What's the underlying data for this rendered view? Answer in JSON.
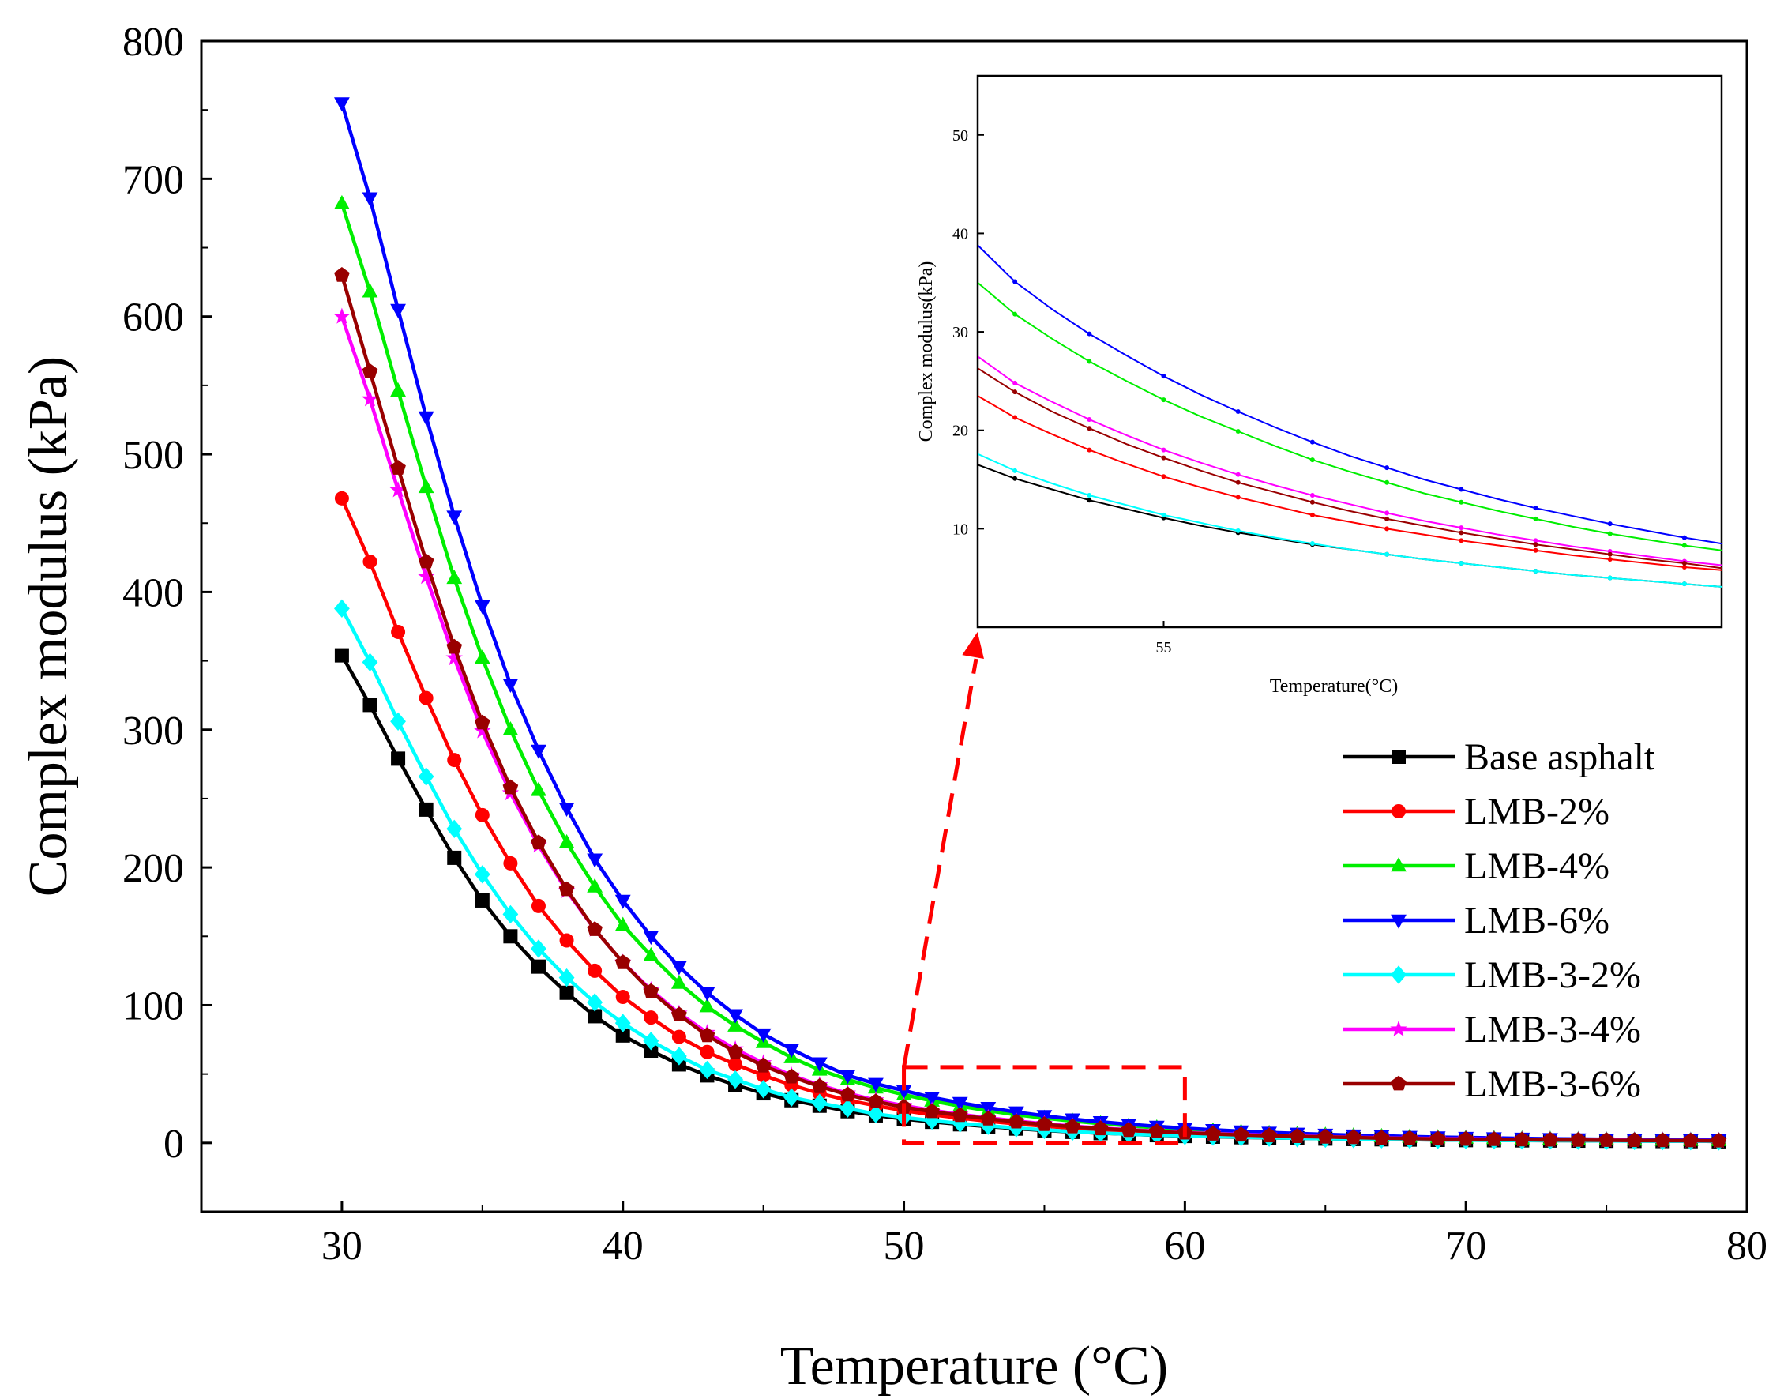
{
  "chart_data": [
    {
      "type": "line",
      "xlabel": "Temperature (°C)",
      "ylabel": "Complex modulus (kPa)",
      "xlim": [
        25,
        80
      ],
      "ylim": [
        -50,
        800
      ],
      "xticks": [
        30,
        40,
        50,
        60,
        70,
        80
      ],
      "yticks": [
        0,
        100,
        200,
        300,
        400,
        500,
        600,
        700,
        800
      ],
      "xtick_labels": [
        "30",
        "40",
        "50",
        "60",
        "70",
        "80"
      ],
      "ytick_labels": [
        "0",
        "100",
        "200",
        "300",
        "400",
        "500",
        "600",
        "700",
        "800"
      ],
      "grid": false,
      "legend_position": "right",
      "x": [
        30,
        31,
        32,
        33,
        34,
        35,
        36,
        37,
        38,
        39,
        40,
        41,
        42,
        43,
        44,
        45,
        46,
        47,
        48,
        49,
        50,
        51,
        52,
        53,
        54,
        55,
        56,
        57,
        58,
        59,
        60,
        61,
        62,
        63,
        64,
        65,
        66,
        67,
        68,
        69,
        70,
        71,
        72,
        73,
        74,
        75,
        76,
        77,
        78,
        79
      ],
      "series": [
        {
          "name": "Base asphalt",
          "color": "#000000",
          "marker": "square",
          "values": [
            354,
            318,
            279,
            242,
            207,
            176,
            150,
            128,
            109,
            92,
            78,
            67,
            57,
            49,
            42,
            36,
            31,
            27,
            23,
            20,
            17.4,
            15.3,
            13.5,
            11.9,
            10.4,
            9.1,
            8.0,
            7.1,
            6.3,
            5.6,
            5.0,
            4.5,
            4.1,
            3.7,
            3.4,
            3.1,
            2.8,
            2.6,
            2.4,
            2.2,
            2.0,
            1.9,
            1.8,
            1.7,
            1.6,
            1.5,
            1.4,
            1.3,
            1.2,
            1.1
          ]
        },
        {
          "name": "LMB-2%",
          "color": "#ff0000",
          "marker": "circle",
          "values": [
            468,
            422,
            371,
            323,
            278,
            238,
            203,
            172,
            147,
            125,
            106,
            91,
            77,
            66,
            57,
            49,
            42,
            36,
            31,
            27,
            23.5,
            20.5,
            18.0,
            15.8,
            13.8,
            12.2,
            10.7,
            9.5,
            8.5,
            7.6,
            6.8,
            6.1,
            5.5,
            5.0,
            4.5,
            4.1,
            3.7,
            3.4,
            3.1,
            2.9,
            2.7,
            2.5,
            2.3,
            2.1,
            2.0,
            1.9,
            1.8,
            1.7,
            1.6,
            1.5
          ]
        },
        {
          "name": "LMB-4%",
          "color": "#00ee00",
          "marker": "triangle-up",
          "values": [
            682,
            618,
            546,
            476,
            410,
            352,
            300,
            256,
            218,
            186,
            158,
            136,
            116,
            99,
            85,
            73,
            62,
            53,
            46,
            40,
            35,
            30.5,
            26.7,
            23.4,
            20.5,
            18.0,
            15.9,
            14.0,
            12.4,
            11.0,
            9.8,
            8.7,
            7.8,
            7.0,
            6.3,
            5.7,
            5.2,
            4.7,
            4.3,
            3.9,
            3.6,
            3.3,
            3.0,
            2.8,
            2.6,
            2.4,
            2.2,
            2.1,
            2.0,
            1.9
          ]
        },
        {
          "name": "LMB-6%",
          "color": "#0000ff",
          "marker": "triangle-down",
          "values": [
            755,
            686,
            605,
            527,
            455,
            390,
            333,
            285,
            243,
            206,
            176,
            150,
            128,
            109,
            93,
            79,
            68,
            58,
            49,
            43,
            38,
            33,
            29.2,
            25.6,
            22.4,
            19.7,
            17.3,
            15.3,
            13.5,
            12.0,
            10.7,
            9.5,
            8.5,
            7.6,
            6.9,
            6.2,
            5.6,
            5.1,
            4.6,
            4.2,
            3.9,
            3.6,
            3.3,
            3.0,
            2.8,
            2.6,
            2.4,
            2.3,
            2.2,
            2.1
          ]
        },
        {
          "name": "LMB-3-2%",
          "color": "#00ffff",
          "marker": "diamond",
          "values": [
            388,
            349,
            306,
            266,
            228,
            195,
            166,
            141,
            120,
            102,
            87,
            74,
            63,
            53,
            46,
            39,
            33,
            29,
            25,
            21,
            18.5,
            16.2,
            14.2,
            12.4,
            10.8,
            9.4,
            8.2,
            7.2,
            6.4,
            5.7,
            5.1,
            4.6,
            4.2,
            3.8,
            3.4,
            3.1,
            2.8,
            2.6,
            2.4,
            2.2,
            2.0,
            1.9,
            1.8,
            1.7,
            1.6,
            1.5,
            1.4,
            1.3,
            1.2,
            1.1
          ]
        },
        {
          "name": "LMB-3-4%",
          "color": "#ff00ff",
          "marker": "star",
          "values": [
            600,
            540,
            474,
            411,
            352,
            299,
            254,
            216,
            183,
            155,
            131,
            111,
            94,
            80,
            68,
            58,
            49,
            42,
            36,
            31,
            27,
            23.7,
            20.8,
            18.2,
            15.9,
            13.9,
            12.2,
            10.8,
            9.6,
            8.5,
            7.6,
            6.8,
            6.1,
            5.5,
            5.0,
            4.5,
            4.1,
            3.7,
            3.4,
            3.1,
            2.9,
            2.7,
            2.5,
            2.3,
            2.1,
            2.0,
            1.9,
            1.8,
            1.7,
            1.6
          ]
        },
        {
          "name": "LMB-3-6%",
          "color": "#990000",
          "marker": "pentagon",
          "values": [
            630,
            560,
            490,
            422,
            360,
            305,
            258,
            218,
            184,
            155,
            131,
            110,
            93,
            78,
            66,
            56,
            48,
            41,
            35,
            30,
            26,
            22.8,
            20.0,
            17.5,
            15.3,
            13.4,
            11.8,
            10.4,
            9.2,
            8.2,
            7.3,
            6.5,
            5.8,
            5.2,
            4.7,
            4.3,
            3.9,
            3.5,
            3.2,
            2.9,
            2.7,
            2.5,
            2.3,
            2.1,
            2.0,
            1.9,
            1.8,
            1.7,
            1.6,
            1.5
          ]
        }
      ],
      "annotation": {
        "type": "zoom-box",
        "x_range": [
          50,
          60
        ],
        "y_range": [
          0,
          55
        ],
        "color": "#ff0000",
        "style": "dashed"
      }
    },
    {
      "type": "line",
      "role": "inset",
      "xlabel": "Temperature(°C)",
      "ylabel": "Complex modulus(kPa)",
      "xlim": [
        52.5,
        62.5
      ],
      "ylim": [
        0,
        56
      ],
      "xticks": [
        55
      ],
      "yticks": [
        10,
        20,
        30,
        40,
        50
      ],
      "xtick_labels": [
        "55"
      ],
      "ytick_labels": [
        "10",
        "20",
        "30",
        "40",
        "50"
      ],
      "grid": false,
      "x": [
        52.5,
        53,
        53.5,
        54,
        54.5,
        55,
        55.5,
        56,
        56.5,
        57,
        57.5,
        58,
        58.5,
        59,
        59.5,
        60,
        60.5,
        61,
        61.5,
        62,
        62.5
      ],
      "series": [
        {
          "name": "Base asphalt",
          "color": "#000000",
          "values": [
            16.5,
            15.1,
            14.0,
            12.9,
            12.0,
            11.1,
            10.3,
            9.6,
            9.0,
            8.4,
            7.9,
            7.4,
            6.9,
            6.5,
            6.1,
            5.7,
            5.3,
            5.0,
            4.7,
            4.4,
            4.1
          ]
        },
        {
          "name": "LMB-2%",
          "color": "#ff0000",
          "values": [
            23.5,
            21.3,
            19.6,
            18.0,
            16.6,
            15.3,
            14.2,
            13.2,
            12.3,
            11.4,
            10.7,
            10.0,
            9.4,
            8.8,
            8.3,
            7.8,
            7.3,
            6.9,
            6.5,
            6.1,
            5.8
          ]
        },
        {
          "name": "LMB-4%",
          "color": "#00ee00",
          "values": [
            35.0,
            31.8,
            29.3,
            27.0,
            25.0,
            23.1,
            21.4,
            19.9,
            18.4,
            17.0,
            15.8,
            14.7,
            13.6,
            12.7,
            11.8,
            11.0,
            10.2,
            9.5,
            8.9,
            8.3,
            7.8
          ]
        },
        {
          "name": "LMB-6%",
          "color": "#0000ff",
          "values": [
            38.8,
            35.1,
            32.3,
            29.8,
            27.6,
            25.5,
            23.6,
            21.9,
            20.3,
            18.8,
            17.4,
            16.2,
            15.0,
            14.0,
            13.0,
            12.1,
            11.3,
            10.5,
            9.8,
            9.1,
            8.5
          ]
        },
        {
          "name": "LMB-3-2%",
          "color": "#00ffff",
          "values": [
            17.6,
            15.9,
            14.6,
            13.4,
            12.4,
            11.4,
            10.6,
            9.8,
            9.1,
            8.5,
            7.9,
            7.4,
            6.9,
            6.5,
            6.1,
            5.7,
            5.3,
            5.0,
            4.7,
            4.4,
            4.1
          ]
        },
        {
          "name": "LMB-3-4%",
          "color": "#ff00ff",
          "values": [
            27.5,
            24.8,
            22.9,
            21.1,
            19.5,
            18.0,
            16.7,
            15.5,
            14.4,
            13.4,
            12.5,
            11.6,
            10.8,
            10.1,
            9.4,
            8.8,
            8.2,
            7.7,
            7.2,
            6.7,
            6.3
          ]
        },
        {
          "name": "LMB-3-6%",
          "color": "#990000",
          "values": [
            26.3,
            23.9,
            21.9,
            20.2,
            18.6,
            17.2,
            15.9,
            14.7,
            13.7,
            12.7,
            11.8,
            11.0,
            10.3,
            9.6,
            9.0,
            8.4,
            7.9,
            7.4,
            6.9,
            6.5,
            6.0
          ]
        }
      ]
    }
  ]
}
